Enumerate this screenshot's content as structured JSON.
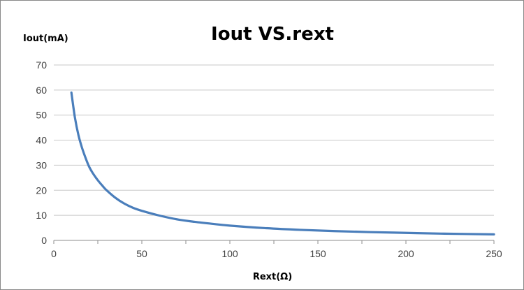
{
  "chart_data": {
    "type": "line",
    "title": "Iout VS.rext",
    "xlabel": "Rext(Ω)",
    "ylabel": "Iout(mA)",
    "xlim": [
      0,
      250
    ],
    "ylim": [
      0,
      70
    ],
    "x_ticks": [
      0,
      50,
      100,
      150,
      200,
      250
    ],
    "y_ticks": [
      0,
      10,
      20,
      30,
      40,
      50,
      60,
      70
    ],
    "grid": "horizontal",
    "legend": "none",
    "series": [
      {
        "color": "#4a7ebb",
        "x": [
          10,
          12,
          14,
          16,
          18,
          20,
          22,
          25,
          28,
          30,
          35,
          40,
          45,
          50,
          60,
          70,
          80,
          90,
          100,
          120,
          140,
          160,
          180,
          200,
          220,
          250
        ],
        "y": [
          59,
          49,
          42,
          37,
          33,
          29.5,
          27,
          24,
          21.5,
          20,
          17,
          14.7,
          13,
          11.8,
          9.9,
          8.4,
          7.4,
          6.6,
          5.9,
          4.9,
          4.2,
          3.7,
          3.3,
          3.0,
          2.7,
          2.4
        ]
      }
    ]
  }
}
